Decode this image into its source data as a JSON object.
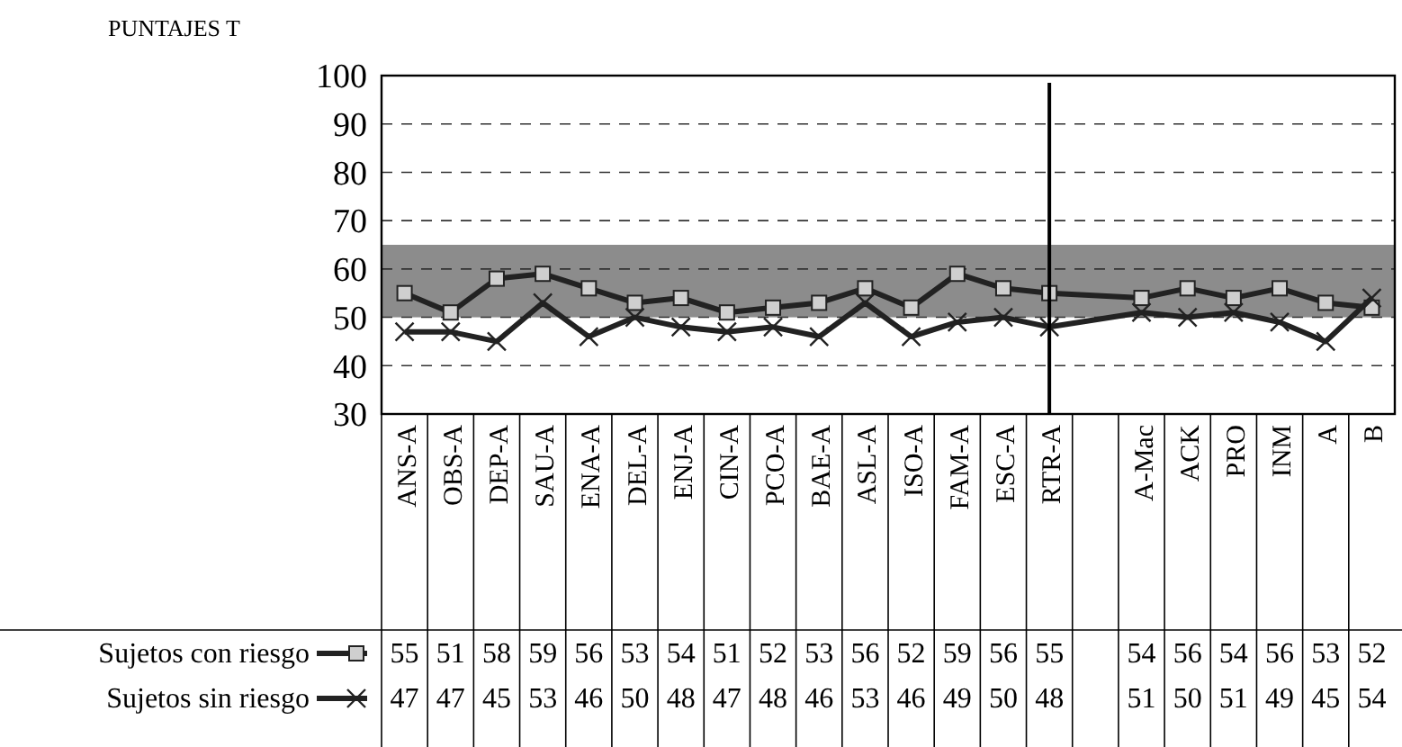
{
  "chart_data": {
    "type": "line",
    "ylabel": "PUNTAJES T",
    "categories": [
      "ANS-A",
      "OBS-A",
      "DEP-A",
      "SAU-A",
      "ENA-A",
      "DEL-A",
      "ENJ-A",
      "CIN-A",
      "PCO-A",
      "BAE-A",
      "ASL-A",
      "ISO-A",
      "FAM-A",
      "ESC-A",
      "RTR-A",
      null,
      "A-Mac",
      "ACK",
      "PRO",
      "INM",
      "A",
      "B"
    ],
    "series": [
      {
        "name": "Sujetos con riesgo",
        "color": "#222222",
        "marker": "square",
        "values": [
          55,
          51,
          58,
          59,
          56,
          53,
          54,
          51,
          52,
          53,
          56,
          52,
          59,
          56,
          55,
          null,
          54,
          56,
          54,
          56,
          53,
          52
        ]
      },
      {
        "name": "Sujetos sin riesgo",
        "color": "#222222",
        "marker": "cross",
        "values": [
          47,
          47,
          45,
          53,
          46,
          50,
          48,
          47,
          48,
          46,
          53,
          46,
          49,
          50,
          48,
          null,
          51,
          50,
          51,
          49,
          45,
          54
        ]
      }
    ],
    "ylim": [
      30,
      100
    ],
    "yticks": [
      30,
      40,
      50,
      60,
      70,
      80,
      90,
      100
    ],
    "grid": "y",
    "bands": [
      {
        "axis": "y",
        "from": 50,
        "to": 65,
        "color": "#8c8c8c"
      }
    ],
    "ref_lines": [
      {
        "axis": "x",
        "value": "RTR-A"
      }
    ],
    "data_labels": true,
    "legend": "bottom left"
  }
}
